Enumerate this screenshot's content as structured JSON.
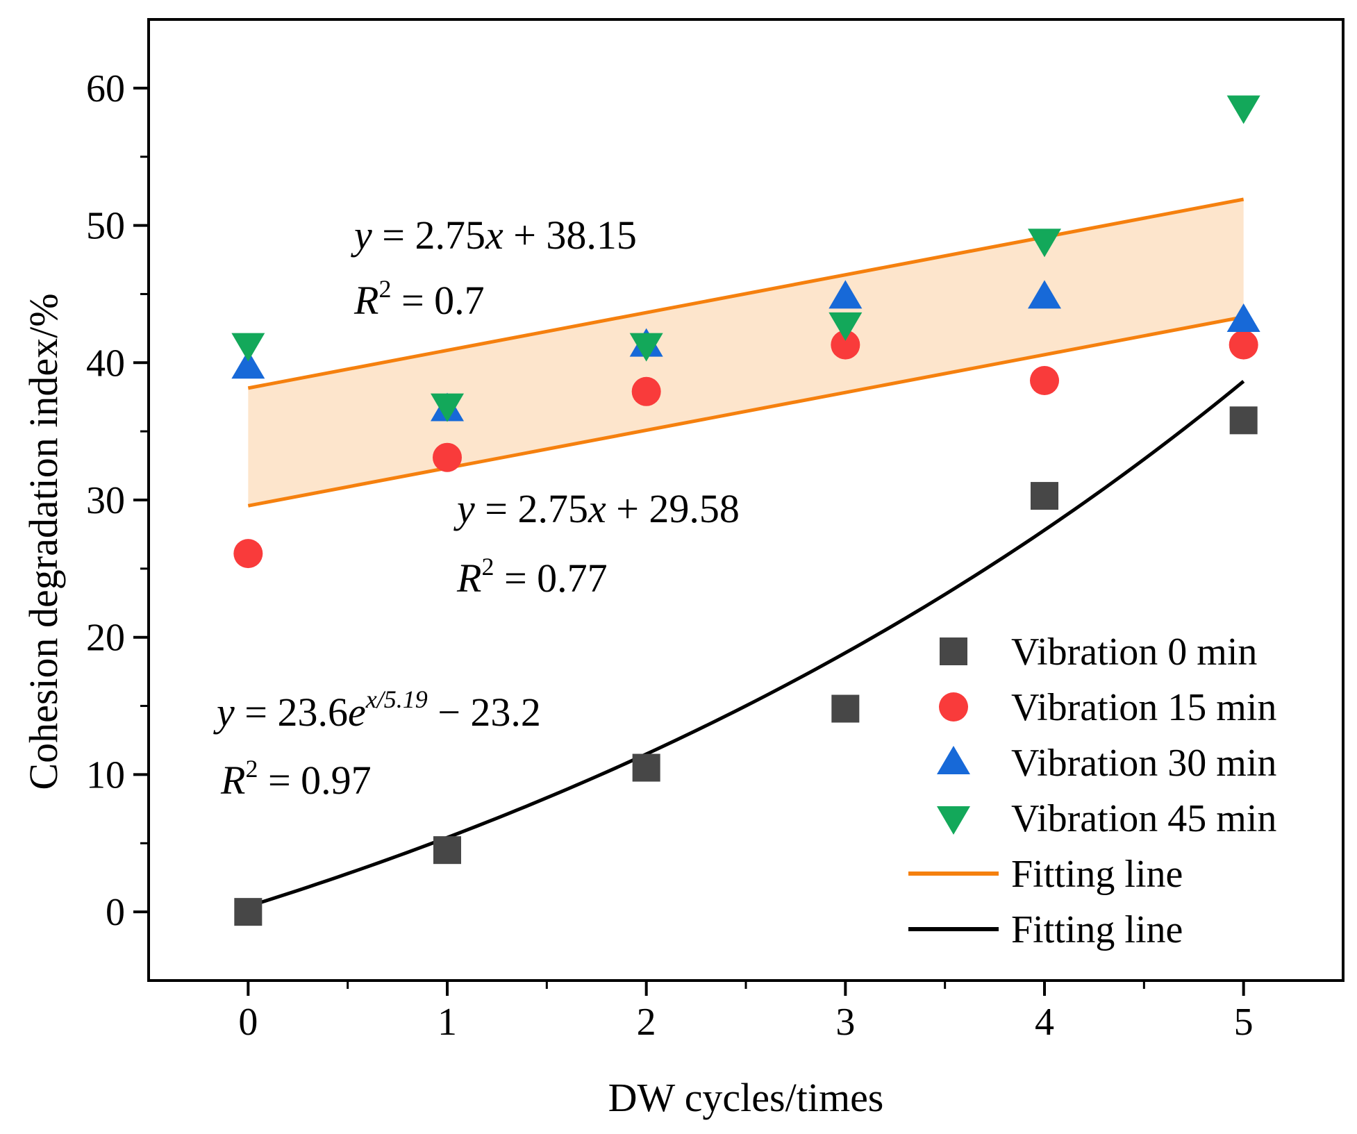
{
  "chart_data": {
    "type": "scatter",
    "xlabel": "DW cycles/times",
    "ylabel": "Cohesion degradation index/%",
    "xlim": [
      -0.5,
      5.5
    ],
    "ylim": [
      -5,
      65
    ],
    "xticks": [
      0,
      1,
      2,
      3,
      4,
      5
    ],
    "yticks": [
      0,
      10,
      20,
      30,
      40,
      50,
      60
    ],
    "x": [
      0,
      1,
      2,
      3,
      4,
      5
    ],
    "series": [
      {
        "name": "Vibration 0 min",
        "marker": "square",
        "color": "#474747",
        "values": [
          0,
          4.5,
          10.5,
          14.8,
          30.3,
          35.8
        ]
      },
      {
        "name": "Vibration 15 min",
        "marker": "circle",
        "color": "#f93b3b",
        "values": [
          26.1,
          33.1,
          37.9,
          41.3,
          38.7,
          41.3
        ]
      },
      {
        "name": "Vibration 30 min",
        "marker": "triangle-up",
        "color": "#1769d8",
        "values": [
          39.7,
          36.6,
          41.3,
          44.8,
          44.8,
          43.1
        ]
      },
      {
        "name": "Vibration 45 min",
        "marker": "triangle-down",
        "color": "#13a85a",
        "values": [
          41.3,
          36.9,
          41.3,
          42.8,
          48.9,
          58.6
        ]
      }
    ],
    "fits": [
      {
        "name": "Fitting line",
        "color": "#f5800e",
        "kind": "linear",
        "slope": 2.75,
        "intercept": 38.15
      },
      {
        "name": "Fitting line",
        "color": "#f5800e",
        "kind": "linear",
        "slope": 2.75,
        "intercept": 29.58
      },
      {
        "name": "Fitting line",
        "color": "#000000",
        "kind": "exponential",
        "a": 23.6,
        "b": 5.19,
        "c": -23.2
      }
    ],
    "band_color": "#fde5cc",
    "annotations": {
      "upper": {
        "eq_y": "y",
        "eq_rest": " = 2.75",
        "eq_x": "x",
        "eq_tail": " + 38.15",
        "r_label": "R",
        "r_sup": "2",
        "r_value": " = 0.7"
      },
      "lower": {
        "eq_y": "y",
        "eq_rest": " = 2.75",
        "eq_x": "x",
        "eq_tail": " + 29.58",
        "r_label": "R",
        "r_sup": "2",
        "r_value": " = 0.77"
      },
      "exp": {
        "eq_y": "y",
        "eq_rest": " = 23.6",
        "eq_e": "e",
        "eq_sup": "x/5.19",
        "eq_tail": " −  23.2",
        "r_label": "R",
        "r_sup": "2",
        "r_value": " = 0.97"
      }
    },
    "legend": {
      "position": "bottom-right",
      "entries": [
        "Vibration 0 min",
        "Vibration 15 min",
        "Vibration 30 min",
        "Vibration 45 min",
        "Fitting line",
        "Fitting line"
      ]
    }
  }
}
